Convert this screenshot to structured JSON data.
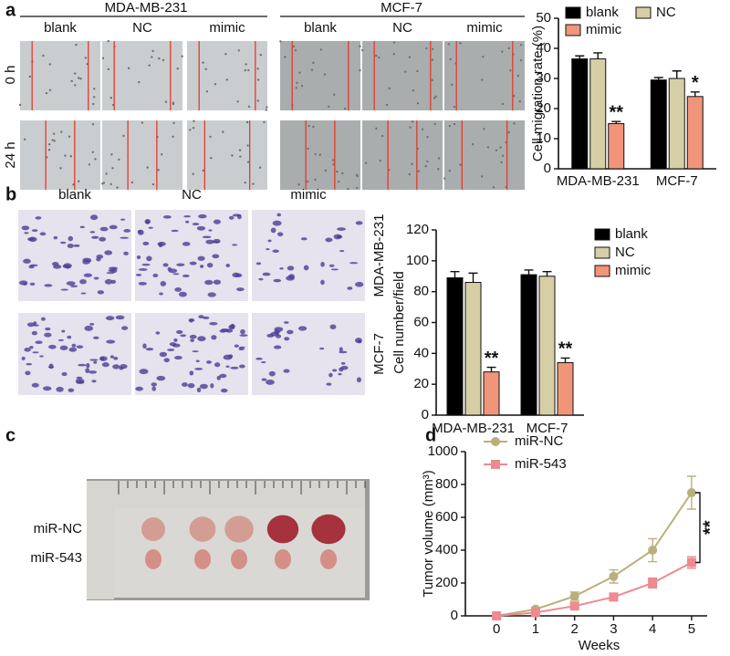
{
  "panel_labels": [
    "a",
    "b",
    "c",
    "d"
  ],
  "wound_healing": {
    "cell_lines": [
      "MDA-MB-231",
      "MCF-7"
    ],
    "groups": [
      "blank",
      "NC",
      "mimic"
    ],
    "times": [
      "0 h",
      "24 h"
    ]
  },
  "transwell": {
    "groups": [
      "blank",
      "NC",
      "mimic"
    ],
    "cell_lines": [
      "MDA-MB-231",
      "MCF-7"
    ]
  },
  "xenograft": {
    "rows": [
      "miR-NC",
      "miR-543"
    ]
  },
  "chart_data": [
    {
      "type": "bar",
      "ylabel": "Cell migration rate (%)",
      "categories": [
        "MDA-MB-231",
        "MCF-7"
      ],
      "ylim": [
        0,
        50
      ],
      "yticks": [
        0,
        10,
        20,
        30,
        40,
        50
      ],
      "series": [
        {
          "name": "blank",
          "color": "#000000",
          "values": [
            36.5,
            29.5
          ],
          "errors": [
            1,
            0.8
          ]
        },
        {
          "name": "NC",
          "color": "#d6cfa6",
          "values": [
            36.5,
            30
          ],
          "errors": [
            2,
            2.5
          ]
        },
        {
          "name": "mimic",
          "color": "#f0957a",
          "values": [
            15,
            24
          ],
          "errors": [
            0.7,
            1.5
          ],
          "significance": [
            "**",
            "*"
          ]
        }
      ]
    },
    {
      "type": "bar",
      "ylabel": "Cell number/field",
      "categories": [
        "MDA-MB-231",
        "MCF-7"
      ],
      "ylim": [
        0,
        120
      ],
      "yticks": [
        0,
        20,
        40,
        60,
        80,
        100,
        120
      ],
      "series": [
        {
          "name": "blank",
          "color": "#000000",
          "values": [
            89,
            91
          ],
          "errors": [
            4,
            3
          ]
        },
        {
          "name": "NC",
          "color": "#d6cfa6",
          "values": [
            86,
            90
          ],
          "errors": [
            6,
            3
          ]
        },
        {
          "name": "mimic",
          "color": "#f0957a",
          "values": [
            28,
            34
          ],
          "errors": [
            3,
            3
          ],
          "significance": [
            "**",
            "**"
          ]
        }
      ]
    },
    {
      "type": "line",
      "ylabel": "Tumor volume (mm³)",
      "xlabel": "Weeks",
      "x": [
        0,
        1,
        2,
        3,
        4,
        5
      ],
      "xlim": [
        -0.8,
        5.4
      ],
      "xticks": [
        0,
        1,
        2,
        3,
        4,
        5
      ],
      "ylim": [
        0,
        1000
      ],
      "yticks": [
        0,
        200,
        400,
        600,
        800,
        1000
      ],
      "significance": "**",
      "series": [
        {
          "name": "miR-NC",
          "color": "#b9b07a",
          "marker": "circle",
          "values": [
            0,
            40,
            120,
            240,
            400,
            750
          ],
          "errors": [
            10,
            10,
            25,
            40,
            70,
            100
          ]
        },
        {
          "name": "miR-543",
          "color": "#ee8a90",
          "marker": "square",
          "values": [
            0,
            20,
            60,
            115,
            200,
            325
          ],
          "errors": [
            5,
            5,
            10,
            15,
            30,
            35
          ]
        }
      ]
    }
  ]
}
